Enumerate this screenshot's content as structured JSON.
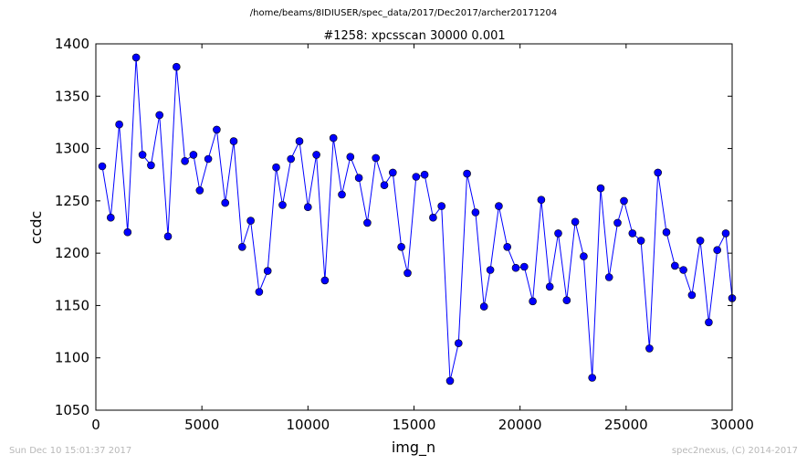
{
  "header": {
    "path": "/home/beams/8IDIUSER/spec_data/2017/Dec2017/archer20171204"
  },
  "footer": {
    "timestamp": "Sun Dec 10 15:01:37 2017",
    "credit": "spec2nexus, (C) 2014-2017"
  },
  "chart_data": {
    "type": "line",
    "title": "#1258: xpcsscan 30000 0.001",
    "xlabel": "img_n",
    "ylabel": "ccdc",
    "xlim": [
      0,
      30000
    ],
    "ylim": [
      1050,
      1400
    ],
    "xticks": [
      0,
      5000,
      10000,
      15000,
      20000,
      25000,
      30000
    ],
    "yticks": [
      1050,
      1100,
      1150,
      1200,
      1250,
      1300,
      1350,
      1400
    ],
    "grid": false,
    "marker": "circle",
    "color": "#0000ff",
    "series": [
      {
        "x": [
          300,
          700,
          1100,
          1500,
          1900,
          2200,
          2600,
          3000,
          3400,
          3800,
          4200,
          4600,
          4900,
          5300,
          5700,
          6100,
          6500,
          6900,
          7300,
          7700,
          8100,
          8500,
          8800,
          9200,
          9600,
          10000,
          10400,
          10800,
          11200,
          11600,
          12000,
          12400,
          12800,
          13200,
          13600,
          14000,
          14400,
          14700,
          15100,
          15500,
          15900,
          16300,
          16700,
          17100,
          17500,
          17900,
          18300,
          18600,
          19000,
          19400,
          19800,
          20200,
          20600,
          21000,
          21400,
          21800,
          22200,
          22600,
          23000,
          23400,
          23800,
          24200,
          24600,
          24900,
          25300,
          25700,
          26100,
          26500,
          26900,
          27300,
          27700,
          28100,
          28500,
          28900,
          29300,
          29700,
          30000
        ],
        "y": [
          1283,
          1234,
          1323,
          1220,
          1387,
          1294,
          1284,
          1332,
          1216,
          1378,
          1288,
          1294,
          1260,
          1290,
          1318,
          1248,
          1307,
          1206,
          1231,
          1163,
          1183,
          1282,
          1246,
          1290,
          1307,
          1244,
          1294,
          1174,
          1310,
          1256,
          1292,
          1272,
          1229,
          1291,
          1265,
          1277,
          1206,
          1181,
          1273,
          1275,
          1234,
          1245,
          1078,
          1114,
          1276,
          1239,
          1149,
          1184,
          1245,
          1206,
          1186,
          1187,
          1154,
          1251,
          1168,
          1219,
          1155,
          1230,
          1197,
          1081,
          1262,
          1177,
          1229,
          1250,
          1219,
          1212,
          1109,
          1277,
          1220,
          1188,
          1184,
          1160,
          1212,
          1134,
          1203,
          1219,
          1157
        ]
      }
    ]
  }
}
